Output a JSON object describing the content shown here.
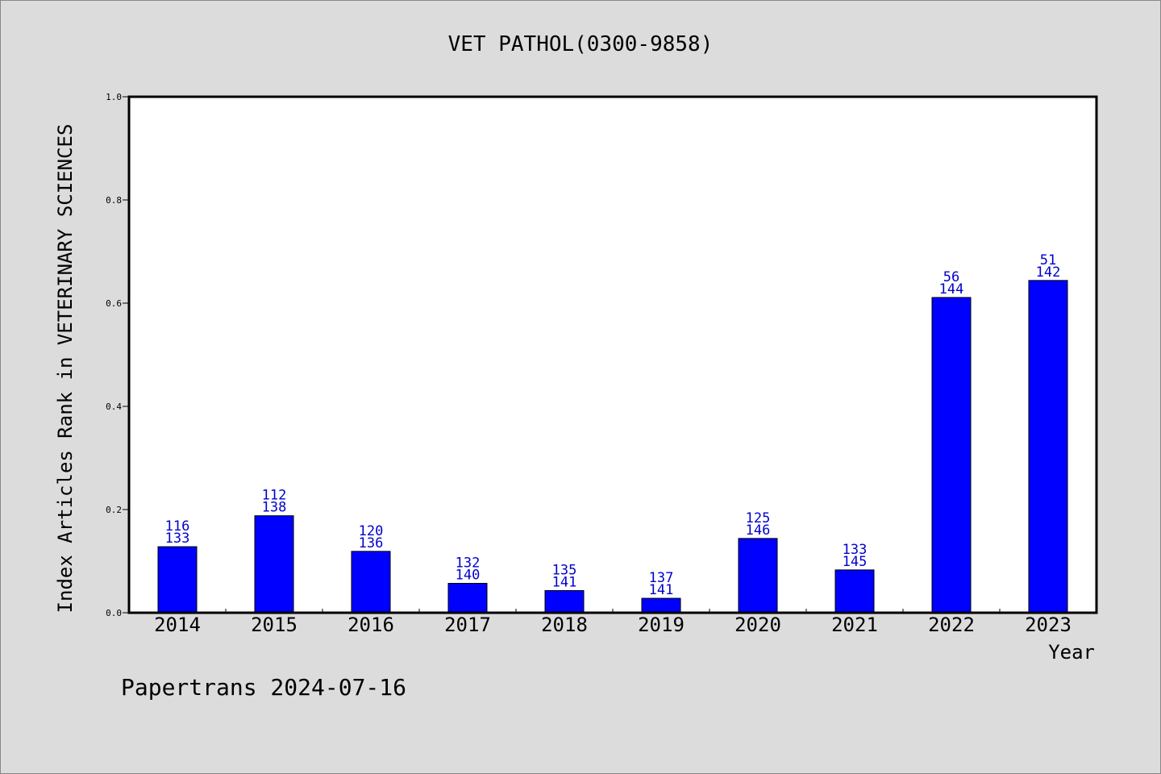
{
  "chart_data": {
    "type": "bar",
    "title": "VET PATHOL(0300-9858)",
    "xlabel": "Year",
    "ylabel": "Index Articles Rank in VETERINARY SCIENCES",
    "footer": "Papertrans 2024-07-16",
    "categories": [
      "2014",
      "2015",
      "2016",
      "2017",
      "2018",
      "2019",
      "2020",
      "2021",
      "2022",
      "2023"
    ],
    "values": [
      0.128,
      0.188,
      0.119,
      0.057,
      0.043,
      0.028,
      0.144,
      0.083,
      0.611,
      0.644
    ],
    "rank": [
      "116",
      "112",
      "120",
      "132",
      "135",
      "137",
      "125",
      "133",
      "56",
      "51"
    ],
    "total": [
      "133",
      "138",
      "136",
      "140",
      "141",
      "141",
      "146",
      "145",
      "144",
      "142"
    ],
    "ylim": [
      0.0,
      1.0
    ],
    "yticks": [
      "0.0",
      "0.2",
      "0.4",
      "0.6",
      "0.8",
      "1.0"
    ],
    "bar_color": "#0000ff",
    "label_color": "#0000cc",
    "grid": false,
    "legend": "none"
  }
}
